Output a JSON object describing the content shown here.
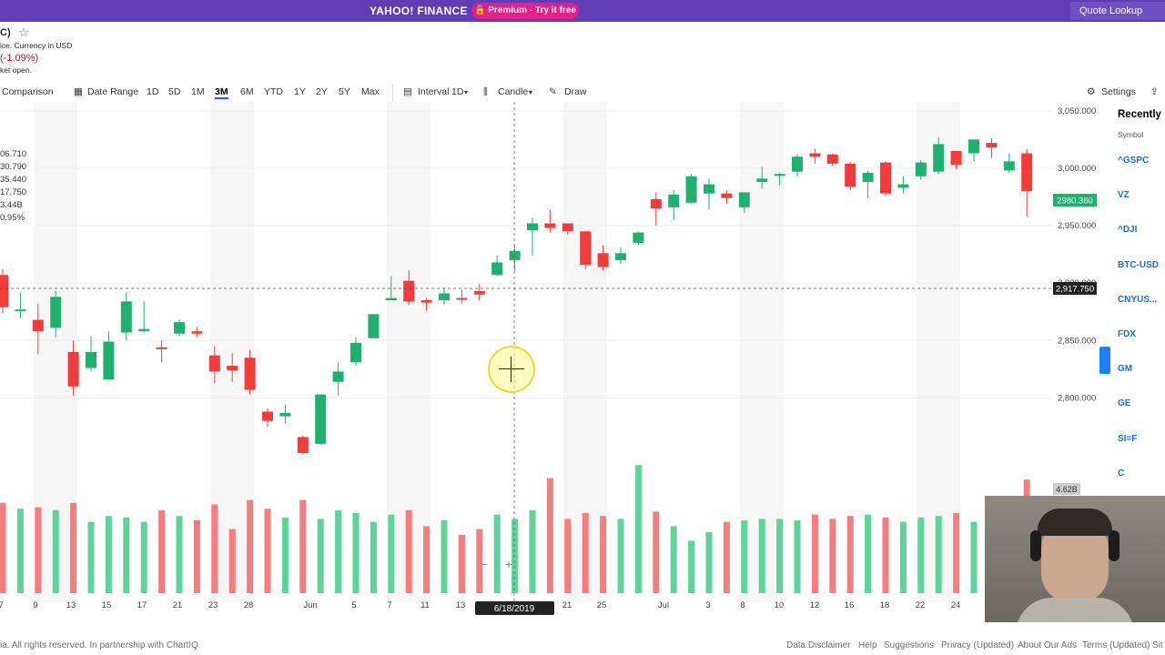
{
  "topbar": {
    "brand": "YAHOO! FINANCE",
    "premium": "Premium - Try it free",
    "quote_lookup": "Quote Lookup"
  },
  "quote": {
    "ticker_partial": "C)",
    "star_icon": "star-icon",
    "currency_text": "ice. Currency in USD",
    "change": "(-1.09%)",
    "market_status": "ket open."
  },
  "crosshair_values": [
    "06.710",
    "30.790",
    "35.440",
    "17.750",
    "3.44B",
    "0.95%"
  ],
  "toolbar": {
    "comparison": "Comparison",
    "date_range": "Date Range",
    "ranges": [
      "1D",
      "5D",
      "1M",
      "3M",
      "6M",
      "YTD",
      "1Y",
      "2Y",
      "5Y",
      "Max"
    ],
    "selected_range": "3M",
    "interval_label": "Interval",
    "interval_value": "1D",
    "chart_type": "Candle",
    "draw": "Draw",
    "settings": "Settings"
  },
  "recently_viewed": {
    "title": "Recently",
    "column": "Symbol",
    "symbols": [
      "^GSPC",
      "VZ",
      "^DJI",
      "BTC-USD",
      "CNYUS...",
      "FDX",
      "GM",
      "GE",
      "SI=F",
      "C"
    ]
  },
  "chart_data": {
    "type": "candlestick",
    "y_ticks": [
      3050,
      3000,
      2950,
      2900,
      2850,
      2800
    ],
    "y_tick_labels": [
      "3,050.000",
      "3,000.000",
      "2,950.000",
      "2,900.000",
      "2,850.000",
      "2,800.000"
    ],
    "ylim": [
      2752,
      3053
    ],
    "x_labels": [
      "7",
      "9",
      "13",
      "15",
      "17",
      "21",
      "23",
      "28",
      "Jun",
      "5",
      "7",
      "11",
      "13",
      "6/18/2019",
      "21",
      "25",
      "Jul",
      "3",
      "8",
      "10",
      "12",
      "16",
      "18",
      "22",
      "24"
    ],
    "last_price": "2980.380",
    "crosshair_price": "2,917.750",
    "crosshair_date": "6/18/2019",
    "volume_label": "4.62B",
    "zoom_out": "−",
    "zoom_in": "+",
    "up_color": "#1fb16e",
    "down_color": "#f23c3c",
    "candles": [
      {
        "o": 2907,
        "h": 2912,
        "l": 2874,
        "c": 2879
      },
      {
        "o": 2876,
        "h": 2892,
        "l": 2869,
        "c": 2877
      },
      {
        "o": 2868,
        "h": 2882,
        "l": 2838,
        "c": 2858
      },
      {
        "o": 2861,
        "h": 2893,
        "l": 2853,
        "c": 2888
      },
      {
        "o": 2840,
        "h": 2850,
        "l": 2802,
        "c": 2810
      },
      {
        "o": 2826,
        "h": 2854,
        "l": 2823,
        "c": 2840
      },
      {
        "o": 2816,
        "h": 2858,
        "l": 2817,
        "c": 2849
      },
      {
        "o": 2857,
        "h": 2892,
        "l": 2850,
        "c": 2884
      },
      {
        "o": 2858,
        "h": 2884,
        "l": 2857,
        "c": 2860
      },
      {
        "o": 2844,
        "h": 2850,
        "l": 2831,
        "c": 2843
      },
      {
        "o": 2856,
        "h": 2868,
        "l": 2854,
        "c": 2866
      },
      {
        "o": 2858,
        "h": 2862,
        "l": 2853,
        "c": 2856
      },
      {
        "o": 2837,
        "h": 2845,
        "l": 2813,
        "c": 2823
      },
      {
        "o": 2828,
        "h": 2839,
        "l": 2814,
        "c": 2824
      },
      {
        "o": 2835,
        "h": 2842,
        "l": 2803,
        "c": 2807
      },
      {
        "o": 2788,
        "h": 2791,
        "l": 2775,
        "c": 2780
      },
      {
        "o": 2784,
        "h": 2794,
        "l": 2778,
        "c": 2787
      },
      {
        "o": 2766,
        "h": 2767,
        "l": 2751,
        "c": 2752
      },
      {
        "o": 2760,
        "h": 2803,
        "l": 2759,
        "c": 2803
      },
      {
        "o": 2814,
        "h": 2831,
        "l": 2802,
        "c": 2823
      },
      {
        "o": 2831,
        "h": 2853,
        "l": 2828,
        "c": 2848
      },
      {
        "o": 2852,
        "h": 2873,
        "l": 2852,
        "c": 2873
      },
      {
        "o": 2885,
        "h": 2906,
        "l": 2885,
        "c": 2887
      },
      {
        "o": 2902,
        "h": 2911,
        "l": 2881,
        "c": 2884
      },
      {
        "o": 2885,
        "h": 2887,
        "l": 2876,
        "c": 2883
      },
      {
        "o": 2885,
        "h": 2896,
        "l": 2881,
        "c": 2891
      },
      {
        "o": 2887,
        "h": 2894,
        "l": 2882,
        "c": 2886
      },
      {
        "o": 2893,
        "h": 2899,
        "l": 2885,
        "c": 2890
      },
      {
        "o": 2907,
        "h": 2924,
        "l": 2906,
        "c": 2918
      },
      {
        "o": 2920,
        "h": 2933,
        "l": 2910,
        "c": 2928
      },
      {
        "o": 2946,
        "h": 2957,
        "l": 2924,
        "c": 2952
      },
      {
        "o": 2952,
        "h": 2964,
        "l": 2944,
        "c": 2948
      },
      {
        "o": 2952,
        "h": 2952,
        "l": 2942,
        "c": 2945
      },
      {
        "o": 2945,
        "h": 2945,
        "l": 2912,
        "c": 2916
      },
      {
        "o": 2926,
        "h": 2933,
        "l": 2911,
        "c": 2914
      },
      {
        "o": 2920,
        "h": 2931,
        "l": 2917,
        "c": 2926
      },
      {
        "o": 2935,
        "h": 2945,
        "l": 2933,
        "c": 2944
      },
      {
        "o": 2973,
        "h": 2979,
        "l": 2950,
        "c": 2965
      },
      {
        "o": 2966,
        "h": 2981,
        "l": 2955,
        "c": 2977
      },
      {
        "o": 2970,
        "h": 2995,
        "l": 2969,
        "c": 2993
      },
      {
        "o": 2978,
        "h": 2991,
        "l": 2964,
        "c": 2986
      },
      {
        "o": 2978,
        "h": 2981,
        "l": 2969,
        "c": 2974
      },
      {
        "o": 2966,
        "h": 2979,
        "l": 2961,
        "c": 2979
      },
      {
        "o": 2988,
        "h": 3001,
        "l": 2982,
        "c": 2991
      },
      {
        "o": 2994,
        "h": 2996,
        "l": 2985,
        "c": 2995
      },
      {
        "o": 2997,
        "h": 3012,
        "l": 2993,
        "c": 3010
      },
      {
        "o": 3013,
        "h": 3017,
        "l": 3004,
        "c": 3010
      },
      {
        "o": 3012,
        "h": 3013,
        "l": 3002,
        "c": 3004
      },
      {
        "o": 3004,
        "h": 3005,
        "l": 2981,
        "c": 2984
      },
      {
        "o": 2988,
        "h": 2998,
        "l": 2974,
        "c": 2996
      },
      {
        "o": 3005,
        "h": 3006,
        "l": 2976,
        "c": 2978
      },
      {
        "o": 2983,
        "h": 2993,
        "l": 2978,
        "c": 2986
      },
      {
        "o": 2993,
        "h": 3007,
        "l": 2990,
        "c": 3005
      },
      {
        "o": 2997,
        "h": 3027,
        "l": 2995,
        "c": 3021
      },
      {
        "o": 3015,
        "h": 3015,
        "l": 2999,
        "c": 3003
      },
      {
        "o": 3013,
        "h": 3025,
        "l": 3006,
        "c": 3025
      },
      {
        "o": 3022,
        "h": 3026,
        "l": 3009,
        "c": 3018
      },
      {
        "o": 2998,
        "h": 3013,
        "l": 2996,
        "c": 3006
      },
      {
        "o": 3013,
        "h": 3017,
        "l": 2958,
        "c": 2980
      }
    ],
    "volume_heights": [
      0.62,
      0.58,
      0.59,
      0.57,
      0.62,
      0.49,
      0.53,
      0.52,
      0.49,
      0.57,
      0.53,
      0.5,
      0.61,
      0.44,
      0.64,
      0.58,
      0.52,
      0.64,
      0.51,
      0.57,
      0.55,
      0.49,
      0.54,
      0.57,
      0.46,
      0.5,
      0.4,
      0.44,
      0.54,
      0.51,
      0.57,
      0.79,
      0.51,
      0.55,
      0.53,
      0.51,
      0.88,
      0.56,
      0.46,
      0.36,
      0.42,
      0.49,
      0.5,
      0.51,
      0.51,
      0.5,
      0.54,
      0.51,
      0.53,
      0.54,
      0.52,
      0.49,
      0.52,
      0.53,
      0.55,
      0.49,
      0.5,
      0.5,
      0.78
    ]
  },
  "footer": {
    "copyright": "ia. All rights reserved. In partnership with ChartIQ",
    "links": [
      "Data Disclaimer",
      "Help",
      "Suggestions",
      "Privacy (Updated)",
      "About Our Ads",
      "Terms (Updated)",
      "Sit"
    ]
  }
}
